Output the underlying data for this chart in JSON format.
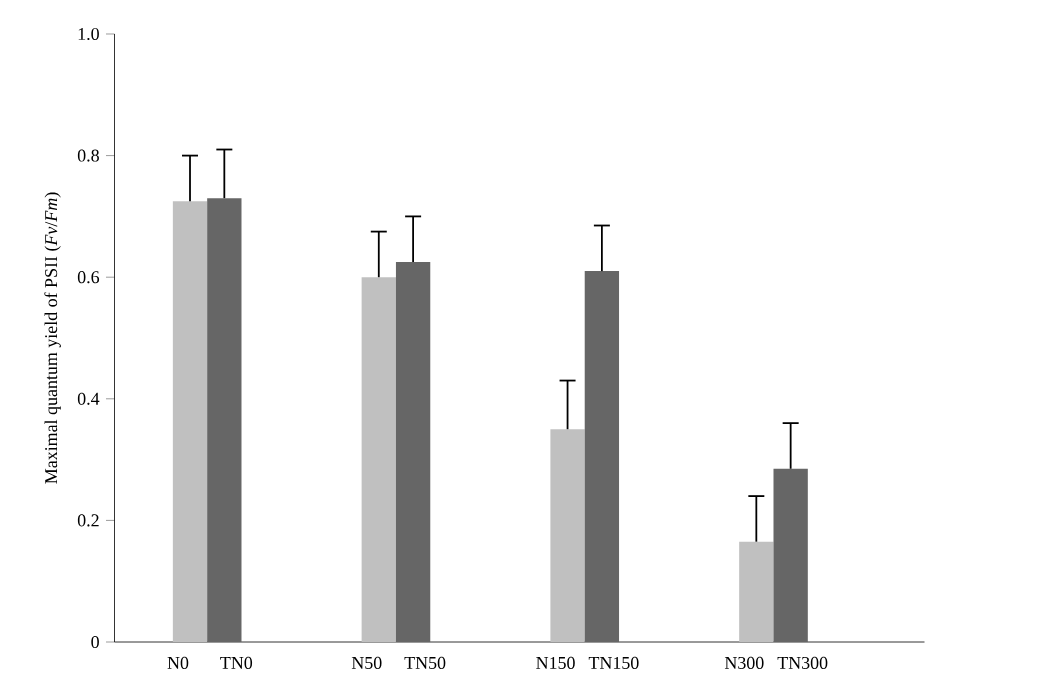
{
  "chart_data": {
    "type": "bar",
    "ylabel": "Maximal quantum yield of PSII (*Fv*/*Fm*)",
    "categories": [
      "N0",
      "TN0",
      "N50",
      "TN50",
      "N150",
      "TN150",
      "N300",
      "TN300"
    ],
    "values": [
      0.725,
      0.73,
      0.6,
      0.625,
      0.35,
      0.61,
      0.165,
      0.285
    ],
    "errors": [
      0.075,
      0.08,
      0.075,
      0.075,
      0.08,
      0.075,
      0.075,
      0.075
    ],
    "colors": [
      "#c0c0c0",
      "#666666",
      "#c0c0c0",
      "#666666",
      "#c0c0c0",
      "#666666",
      "#c0c0c0",
      "#666666"
    ],
    "ylim": [
      0,
      1.0
    ],
    "yticks": [
      0,
      0.2,
      0.4,
      0.6,
      0.8,
      {
        "value": 1.0,
        "label": "1.0"
      }
    ],
    "grid": false
  }
}
